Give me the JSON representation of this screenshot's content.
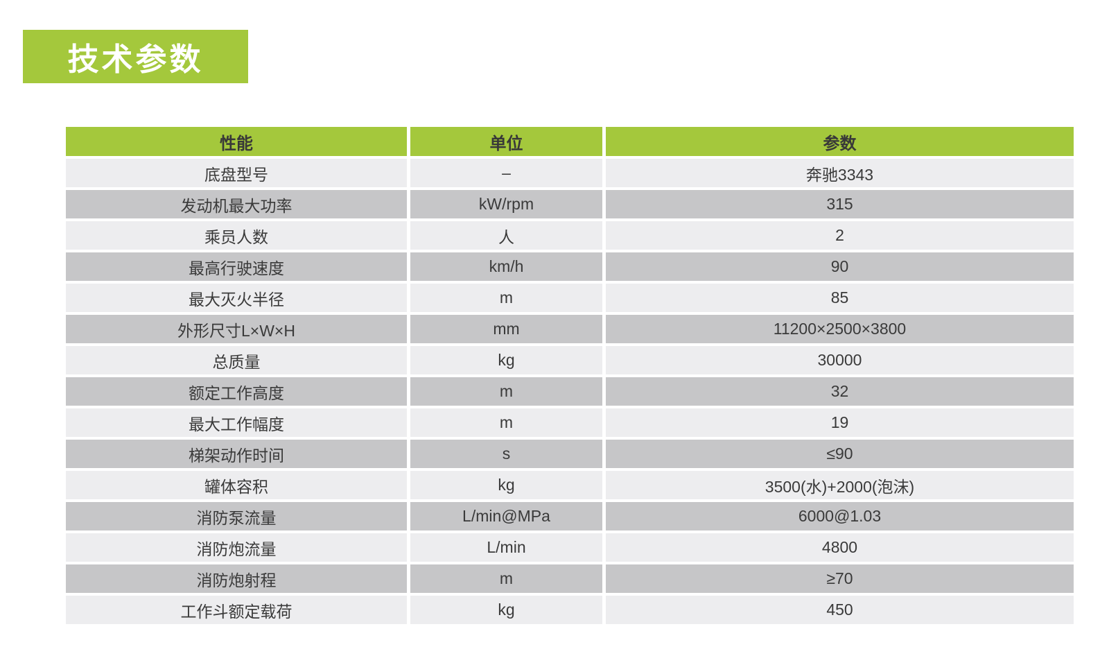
{
  "title": {
    "text": "技术参数"
  },
  "colors": {
    "accent_green": "#a4c83c",
    "row_light": "#ededef",
    "row_dark": "#c6c6c8",
    "cell_text": "#3a3a3a",
    "header_text": "#383838",
    "title_text": "#ffffff",
    "page_bg": "#ffffff"
  },
  "table": {
    "columns": [
      "性能",
      "单位",
      "参数"
    ],
    "rows": [
      {
        "name": "底盘型号",
        "unit": "–",
        "value": "奔驰3343"
      },
      {
        "name": "发动机最大功率",
        "unit": "kW/rpm",
        "value": "315"
      },
      {
        "name": "乘员人数",
        "unit": "人",
        "value": "2"
      },
      {
        "name": "最高行驶速度",
        "unit": "km/h",
        "value": "90"
      },
      {
        "name": "最大灭火半径",
        "unit": "m",
        "value": "85"
      },
      {
        "name": "外形尺寸L×W×H",
        "unit": "mm",
        "value": "11200×2500×3800"
      },
      {
        "name": "总质量",
        "unit": "kg",
        "value": "30000"
      },
      {
        "name": "额定工作高度",
        "unit": "m",
        "value": "32"
      },
      {
        "name": "最大工作幅度",
        "unit": "m",
        "value": "19"
      },
      {
        "name": "梯架动作时间",
        "unit": "s",
        "value": "≤90"
      },
      {
        "name": "罐体容积",
        "unit": "kg",
        "value": "3500(水)+2000(泡沫)"
      },
      {
        "name": "消防泵流量",
        "unit": "L/min@MPa",
        "value": "6000@1.03"
      },
      {
        "name": "消防炮流量",
        "unit": "L/min",
        "value": "4800"
      },
      {
        "name": "消防炮射程",
        "unit": "m",
        "value": "≥70"
      },
      {
        "name": "工作斗额定载荷",
        "unit": "kg",
        "value": "450"
      }
    ]
  }
}
